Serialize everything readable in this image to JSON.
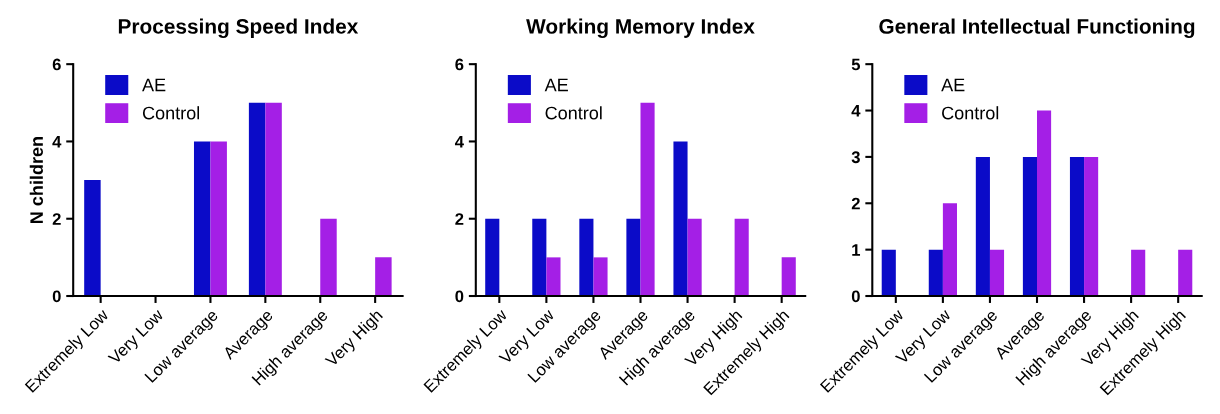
{
  "chart_data": [
    {
      "type": "bar",
      "title": "Processing Speed Index",
      "ylabel": "N children",
      "categories": [
        "Extremely Low",
        "Very Low",
        "Low average",
        "Average",
        "High average",
        "Very High"
      ],
      "series": [
        {
          "name": "AE",
          "color": "#0b0bc8",
          "values": [
            3,
            0,
            4,
            5,
            0,
            0
          ]
        },
        {
          "name": "Control",
          "color": "#a41fe6",
          "values": [
            0,
            0,
            4,
            5,
            2,
            1
          ]
        }
      ],
      "ylim": [
        0,
        6
      ],
      "yticks": [
        0,
        2,
        4,
        6
      ],
      "legend": "top left",
      "grid": false
    },
    {
      "type": "bar",
      "title": "Working Memory Index",
      "categories": [
        "Extremely Low",
        "Very Low",
        "Low average",
        "Average",
        "High average",
        "Very High",
        "Extremely High"
      ],
      "series": [
        {
          "name": "AE",
          "color": "#0b0bc8",
          "values": [
            2,
            2,
            2,
            2,
            4,
            0,
            0
          ]
        },
        {
          "name": "Control",
          "color": "#a41fe6",
          "values": [
            0,
            1,
            1,
            5,
            2,
            2,
            1
          ]
        }
      ],
      "ylim": [
        0,
        6
      ],
      "yticks": [
        0,
        2,
        4,
        6
      ],
      "legend": "top left",
      "grid": false
    },
    {
      "type": "bar",
      "title": "General Intellectual Functioning",
      "categories": [
        "Extremely Low",
        "Very Low",
        "Low average",
        "Average",
        "High average",
        "Very High",
        "Extremely High"
      ],
      "series": [
        {
          "name": "AE",
          "color": "#0b0bc8",
          "values": [
            1,
            1,
            3,
            3,
            3,
            0,
            0
          ]
        },
        {
          "name": "Control",
          "color": "#a41fe6",
          "values": [
            0,
            2,
            1,
            4,
            3,
            1,
            1
          ]
        }
      ],
      "ylim": [
        0,
        5
      ],
      "yticks": [
        0,
        1,
        2,
        3,
        4,
        5
      ],
      "legend": "top left",
      "grid": false
    }
  ]
}
